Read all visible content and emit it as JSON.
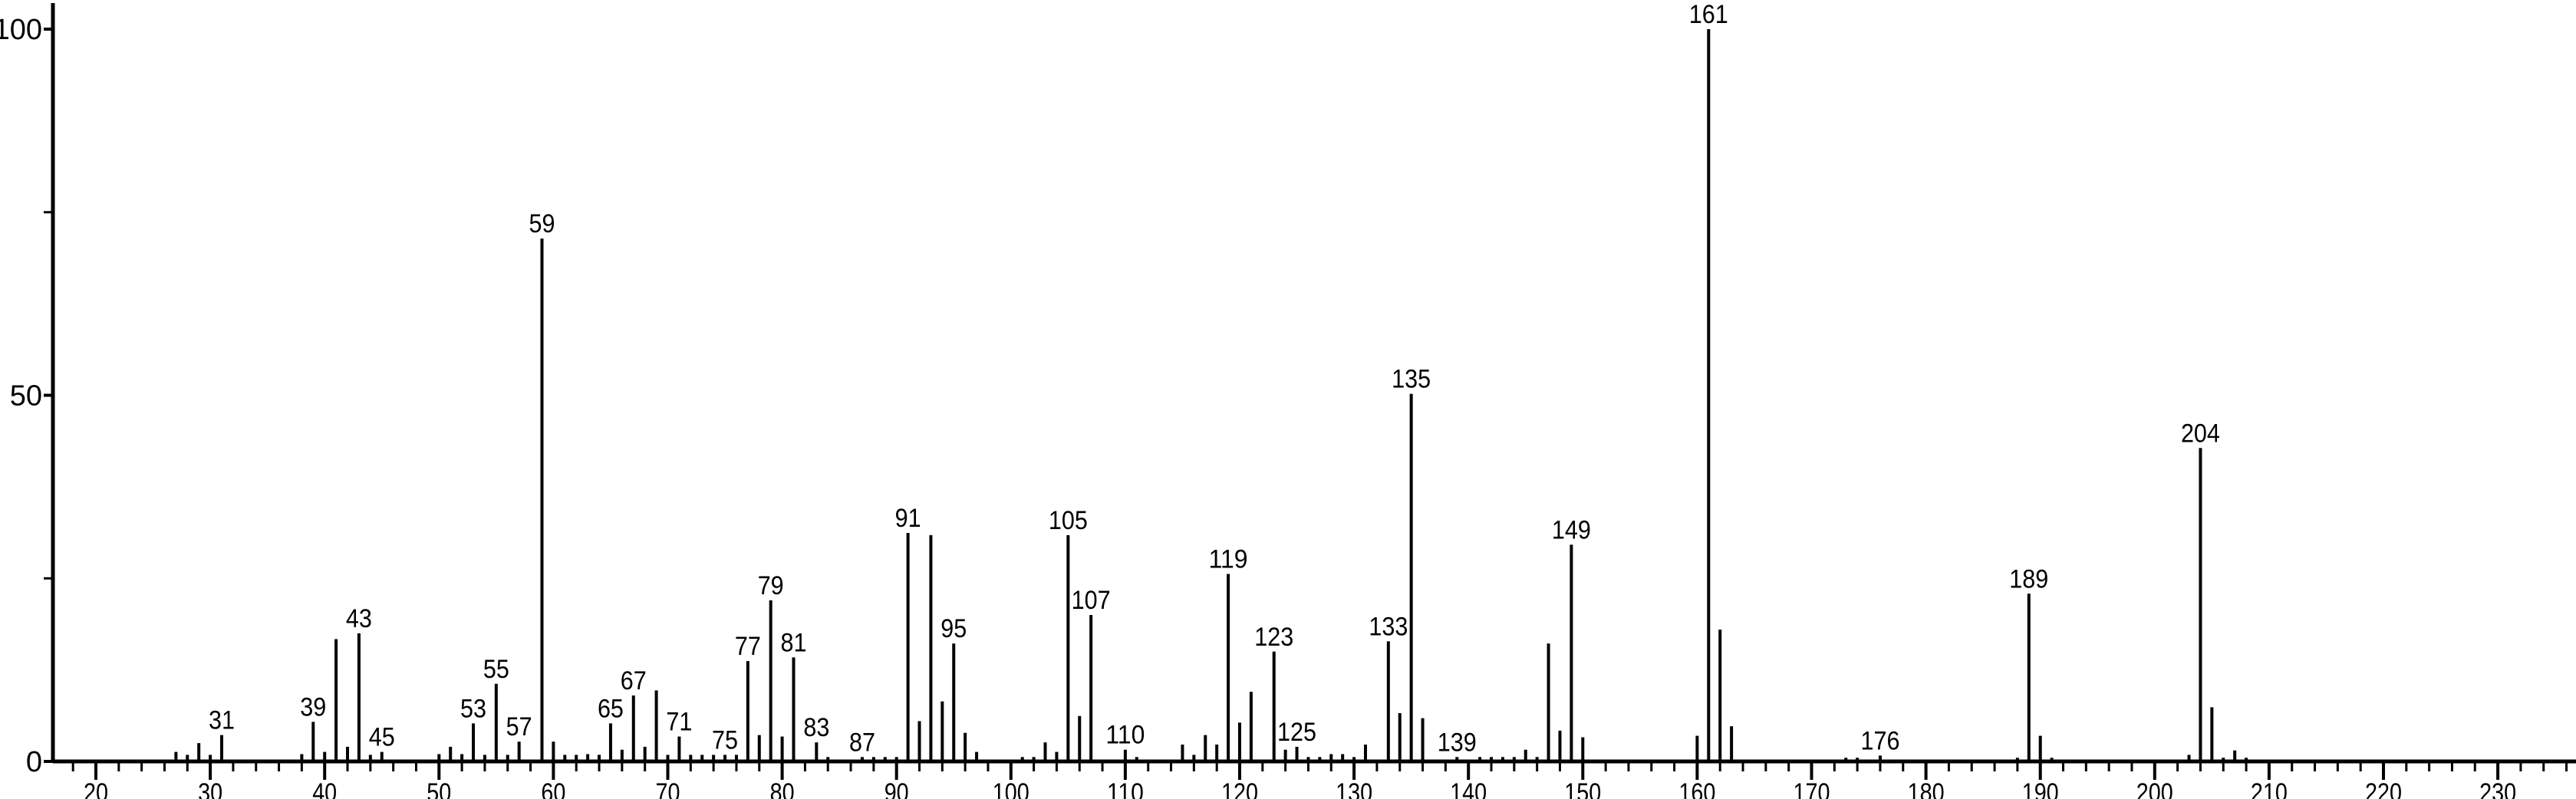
{
  "chart_data": {
    "type": "bar",
    "title": "",
    "xlabel": "",
    "ylabel": "",
    "xlim": [
      16,
      237
    ],
    "ylim": [
      0,
      100
    ],
    "x_ticks_major": [
      20,
      30,
      40,
      50,
      60,
      70,
      80,
      90,
      100,
      110,
      120,
      130,
      140,
      150,
      160,
      170,
      180,
      190,
      200,
      210,
      220,
      230
    ],
    "x_tick_minor_step": 2,
    "y_ticks_labeled": [
      0,
      50,
      100
    ],
    "y_ticks_minor": [
      25,
      75
    ],
    "grid": false,
    "color": "#000000",
    "peaks": [
      {
        "mz": 27,
        "i": 1.3
      },
      {
        "mz": 28,
        "i": 0.9
      },
      {
        "mz": 29,
        "i": 2.5
      },
      {
        "mz": 30,
        "i": 0.9
      },
      {
        "mz": 31,
        "i": 3.6,
        "label": "31"
      },
      {
        "mz": 38,
        "i": 1.0
      },
      {
        "mz": 39,
        "i": 5.4,
        "label": "39"
      },
      {
        "mz": 40,
        "i": 1.3
      },
      {
        "mz": 41,
        "i": 16.7
      },
      {
        "mz": 42,
        "i": 2.0
      },
      {
        "mz": 43,
        "i": 17.5,
        "label": "43"
      },
      {
        "mz": 44,
        "i": 0.9
      },
      {
        "mz": 45,
        "i": 1.3,
        "label": "45"
      },
      {
        "mz": 50,
        "i": 1.0
      },
      {
        "mz": 51,
        "i": 2.0
      },
      {
        "mz": 52,
        "i": 1.0
      },
      {
        "mz": 53,
        "i": 5.2,
        "label": "53"
      },
      {
        "mz": 54,
        "i": 0.9
      },
      {
        "mz": 55,
        "i": 10.6,
        "label": "55"
      },
      {
        "mz": 56,
        "i": 0.9
      },
      {
        "mz": 57,
        "i": 2.7,
        "label": "57"
      },
      {
        "mz": 59,
        "i": 71.4,
        "label": "59"
      },
      {
        "mz": 60,
        "i": 2.7
      },
      {
        "mz": 61,
        "i": 0.9
      },
      {
        "mz": 62,
        "i": 0.9
      },
      {
        "mz": 63,
        "i": 1.0
      },
      {
        "mz": 64,
        "i": 0.9
      },
      {
        "mz": 65,
        "i": 5.2,
        "label": "65"
      },
      {
        "mz": 66,
        "i": 1.6
      },
      {
        "mz": 67,
        "i": 9.0,
        "label": "67"
      },
      {
        "mz": 68,
        "i": 2.0
      },
      {
        "mz": 69,
        "i": 9.7
      },
      {
        "mz": 70,
        "i": 0.9
      },
      {
        "mz": 71,
        "i": 3.4,
        "label": "71"
      },
      {
        "mz": 72,
        "i": 0.9
      },
      {
        "mz": 73,
        "i": 0.9
      },
      {
        "mz": 74,
        "i": 0.9
      },
      {
        "mz": 75,
        "i": 0.9,
        "label": "75"
      },
      {
        "mz": 76,
        "i": 0.9
      },
      {
        "mz": 77,
        "i": 13.7,
        "label": "77"
      },
      {
        "mz": 78,
        "i": 3.6
      },
      {
        "mz": 79,
        "i": 22.0,
        "label": "79"
      },
      {
        "mz": 80,
        "i": 3.4
      },
      {
        "mz": 81,
        "i": 14.2,
        "label": "81"
      },
      {
        "mz": 83,
        "i": 2.6,
        "label": "83"
      },
      {
        "mz": 84,
        "i": 0.6
      },
      {
        "mz": 87,
        "i": 0.6,
        "label": "87"
      },
      {
        "mz": 88,
        "i": 0.6
      },
      {
        "mz": 89,
        "i": 0.6
      },
      {
        "mz": 90,
        "i": 0.6
      },
      {
        "mz": 91,
        "i": 31.2,
        "label": "91"
      },
      {
        "mz": 92,
        "i": 5.5
      },
      {
        "mz": 93,
        "i": 30.9
      },
      {
        "mz": 94,
        "i": 8.2
      },
      {
        "mz": 95,
        "i": 16.1,
        "label": "95"
      },
      {
        "mz": 96,
        "i": 3.9
      },
      {
        "mz": 97,
        "i": 1.3
      },
      {
        "mz": 101,
        "i": 0.6
      },
      {
        "mz": 102,
        "i": 0.6
      },
      {
        "mz": 103,
        "i": 2.6
      },
      {
        "mz": 104,
        "i": 1.3
      },
      {
        "mz": 105,
        "i": 30.9,
        "label": "105"
      },
      {
        "mz": 106,
        "i": 6.2
      },
      {
        "mz": 107,
        "i": 20.0,
        "label": "107"
      },
      {
        "mz": 110,
        "i": 1.6,
        "label": "110"
      },
      {
        "mz": 111,
        "i": 0.6
      },
      {
        "mz": 115,
        "i": 2.3
      },
      {
        "mz": 116,
        "i": 0.9
      },
      {
        "mz": 117,
        "i": 3.6
      },
      {
        "mz": 118,
        "i": 2.3
      },
      {
        "mz": 119,
        "i": 25.6,
        "label": "119"
      },
      {
        "mz": 120,
        "i": 5.3
      },
      {
        "mz": 121,
        "i": 9.5
      },
      {
        "mz": 123,
        "i": 15.0,
        "label": "123"
      },
      {
        "mz": 124,
        "i": 1.6
      },
      {
        "mz": 125,
        "i": 2.0,
        "label": "125"
      },
      {
        "mz": 126,
        "i": 0.6
      },
      {
        "mz": 127,
        "i": 0.6
      },
      {
        "mz": 128,
        "i": 1.0
      },
      {
        "mz": 129,
        "i": 1.0
      },
      {
        "mz": 130,
        "i": 0.6
      },
      {
        "mz": 131,
        "i": 2.3
      },
      {
        "mz": 133,
        "i": 16.4,
        "label": "133"
      },
      {
        "mz": 134,
        "i": 6.6
      },
      {
        "mz": 135,
        "i": 50.2,
        "label": "135"
      },
      {
        "mz": 136,
        "i": 5.9
      },
      {
        "mz": 139,
        "i": 0.6,
        "label": "139"
      },
      {
        "mz": 141,
        "i": 0.6
      },
      {
        "mz": 142,
        "i": 0.6
      },
      {
        "mz": 143,
        "i": 0.6
      },
      {
        "mz": 144,
        "i": 0.6
      },
      {
        "mz": 145,
        "i": 1.6
      },
      {
        "mz": 146,
        "i": 0.6
      },
      {
        "mz": 147,
        "i": 16.1
      },
      {
        "mz": 148,
        "i": 4.2
      },
      {
        "mz": 149,
        "i": 29.6,
        "label": "149"
      },
      {
        "mz": 150,
        "i": 3.3
      },
      {
        "mz": 160,
        "i": 3.5
      },
      {
        "mz": 161,
        "i": 100,
        "label": "161"
      },
      {
        "mz": 162,
        "i": 18.0
      },
      {
        "mz": 163,
        "i": 4.8
      },
      {
        "mz": 173,
        "i": 0.5
      },
      {
        "mz": 174,
        "i": 0.5
      },
      {
        "mz": 176,
        "i": 0.8,
        "label": "176"
      },
      {
        "mz": 188,
        "i": 0.5
      },
      {
        "mz": 189,
        "i": 22.9,
        "label": "189"
      },
      {
        "mz": 190,
        "i": 3.5
      },
      {
        "mz": 191,
        "i": 0.5
      },
      {
        "mz": 203,
        "i": 0.9
      },
      {
        "mz": 204,
        "i": 42.8,
        "label": "204"
      },
      {
        "mz": 205,
        "i": 7.4
      },
      {
        "mz": 206,
        "i": 0.5
      },
      {
        "mz": 207,
        "i": 1.5
      },
      {
        "mz": 208,
        "i": 0.5
      }
    ]
  }
}
